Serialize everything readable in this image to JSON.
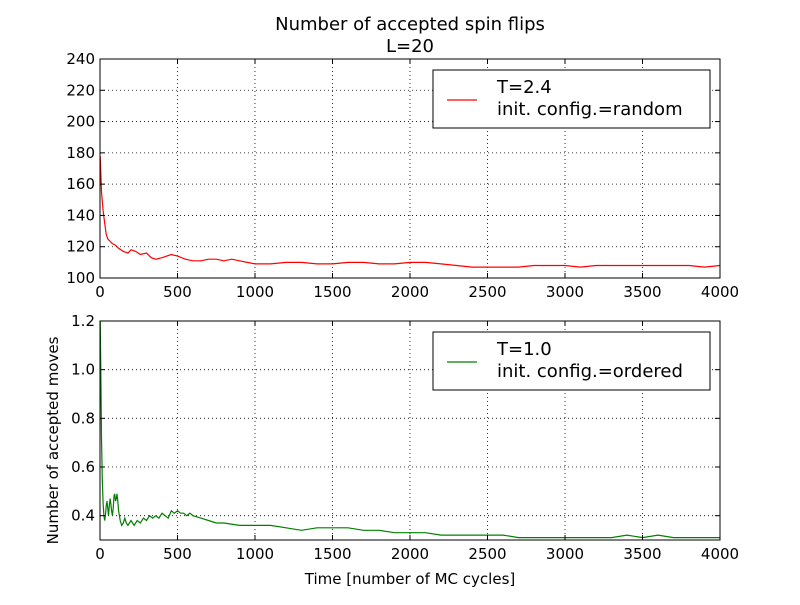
{
  "figure": {
    "title_line1": "Number of accepted spin flips",
    "title_line2": "L=20"
  },
  "chart_data": [
    {
      "type": "line",
      "xlabel": "",
      "ylabel": "",
      "xlim": [
        0,
        4000
      ],
      "ylim": [
        100,
        240
      ],
      "xticks": [
        0,
        500,
        1000,
        1500,
        2000,
        2500,
        3000,
        3500,
        4000
      ],
      "yticks": [
        100,
        120,
        140,
        160,
        180,
        200,
        220,
        240
      ],
      "grid": true,
      "legend_position": "top-right",
      "series": [
        {
          "name": "T=2.4",
          "name_line2": "init. config.=random",
          "color": "#ff0000",
          "x": [
            1,
            10,
            20,
            30,
            40,
            50,
            60,
            70,
            80,
            100,
            120,
            150,
            180,
            200,
            230,
            260,
            300,
            330,
            360,
            400,
            430,
            460,
            500,
            550,
            600,
            650,
            700,
            750,
            800,
            850,
            900,
            950,
            1000,
            1100,
            1200,
            1300,
            1400,
            1500,
            1600,
            1700,
            1800,
            1900,
            2000,
            2100,
            2200,
            2300,
            2400,
            2500,
            2600,
            2700,
            2800,
            2900,
            3000,
            3100,
            3200,
            3300,
            3400,
            3500,
            3600,
            3700,
            3800,
            3900,
            4000
          ],
          "values": [
            178,
            155,
            143,
            135,
            128,
            125,
            124,
            123,
            122,
            121,
            119,
            117,
            116,
            118,
            117,
            115,
            116,
            113,
            112,
            113,
            114,
            115,
            114,
            112,
            111,
            111,
            112,
            112,
            111,
            112,
            111,
            110,
            109,
            109,
            110,
            110,
            109,
            109,
            110,
            110,
            109,
            109,
            110,
            110,
            109,
            108,
            107,
            107,
            107,
            107,
            108,
            108,
            108,
            107,
            108,
            108,
            108,
            108,
            108,
            108,
            108,
            107,
            108
          ]
        }
      ]
    },
    {
      "type": "line",
      "xlabel": "Time [number of MC cycles]",
      "ylabel": "Number of accepted moves",
      "xlim": [
        0,
        4000
      ],
      "ylim": [
        0.3,
        1.2
      ],
      "xticks": [
        0,
        500,
        1000,
        1500,
        2000,
        2500,
        3000,
        3500,
        4000
      ],
      "yticks": [
        0.4,
        0.6,
        0.8,
        1.0,
        1.2
      ],
      "ytick_labels": [
        "0.4",
        "0.6",
        "0.8",
        "1.0",
        "1.2"
      ],
      "grid": true,
      "legend_position": "top-right",
      "series": [
        {
          "name": "T=1.0",
          "name_line2": "init. config.=ordered",
          "color": "#008000",
          "x": [
            1,
            5,
            10,
            15,
            20,
            25,
            30,
            35,
            40,
            45,
            50,
            55,
            60,
            65,
            70,
            75,
            80,
            85,
            90,
            95,
            100,
            105,
            110,
            115,
            120,
            125,
            130,
            140,
            150,
            160,
            170,
            180,
            190,
            200,
            220,
            240,
            260,
            280,
            300,
            320,
            340,
            360,
            380,
            400,
            420,
            440,
            460,
            480,
            500,
            520,
            540,
            560,
            580,
            600,
            650,
            700,
            750,
            800,
            900,
            1000,
            1100,
            1200,
            1300,
            1400,
            1500,
            1600,
            1700,
            1800,
            1900,
            2000,
            2100,
            2200,
            2300,
            2400,
            2500,
            2600,
            2700,
            2800,
            2900,
            3000,
            3100,
            3200,
            3300,
            3400,
            3500,
            3600,
            3700,
            3800,
            3900,
            4000
          ],
          "values": [
            1.2,
            1.0,
            0.72,
            0.55,
            0.45,
            0.4,
            0.38,
            0.4,
            0.44,
            0.46,
            0.43,
            0.4,
            0.44,
            0.47,
            0.45,
            0.42,
            0.4,
            0.43,
            0.48,
            0.49,
            0.46,
            0.47,
            0.49,
            0.46,
            0.42,
            0.4,
            0.38,
            0.36,
            0.37,
            0.39,
            0.37,
            0.36,
            0.37,
            0.38,
            0.36,
            0.38,
            0.37,
            0.39,
            0.38,
            0.4,
            0.39,
            0.4,
            0.39,
            0.41,
            0.4,
            0.39,
            0.42,
            0.41,
            0.42,
            0.41,
            0.41,
            0.4,
            0.41,
            0.4,
            0.39,
            0.38,
            0.37,
            0.37,
            0.36,
            0.36,
            0.36,
            0.35,
            0.34,
            0.35,
            0.35,
            0.35,
            0.34,
            0.34,
            0.33,
            0.33,
            0.33,
            0.32,
            0.32,
            0.32,
            0.32,
            0.32,
            0.31,
            0.31,
            0.31,
            0.31,
            0.31,
            0.31,
            0.31,
            0.32,
            0.31,
            0.32,
            0.31,
            0.31,
            0.31,
            0.31
          ]
        }
      ]
    }
  ]
}
